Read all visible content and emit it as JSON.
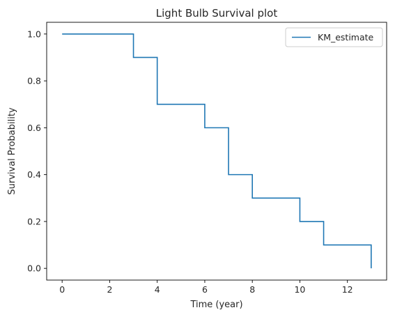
{
  "chart_data": {
    "type": "line",
    "step": "post",
    "title": "Light Bulb Survival plot",
    "xlabel": "Time (year)",
    "ylabel": "Survival Probability",
    "xlim": [
      -0.65,
      13.65
    ],
    "ylim": [
      -0.05,
      1.05
    ],
    "xticks": [
      0,
      2,
      4,
      6,
      8,
      10,
      12
    ],
    "yticks": [
      0.0,
      0.2,
      0.4,
      0.6,
      0.8,
      1.0
    ],
    "xtick_labels": [
      "0",
      "2",
      "4",
      "6",
      "8",
      "10",
      "12"
    ],
    "ytick_labels": [
      "0.0",
      "0.2",
      "0.4",
      "0.6",
      "0.8",
      "1.0"
    ],
    "grid": false,
    "legend": {
      "position": "upper right"
    },
    "series": [
      {
        "name": "KM_estimate",
        "color": "#1f77b4",
        "x": [
          0,
          3,
          4,
          6,
          7,
          8,
          10,
          11,
          13
        ],
        "y": [
          1.0,
          0.9,
          0.7,
          0.6,
          0.4,
          0.3,
          0.2,
          0.1,
          0.0
        ]
      }
    ]
  }
}
